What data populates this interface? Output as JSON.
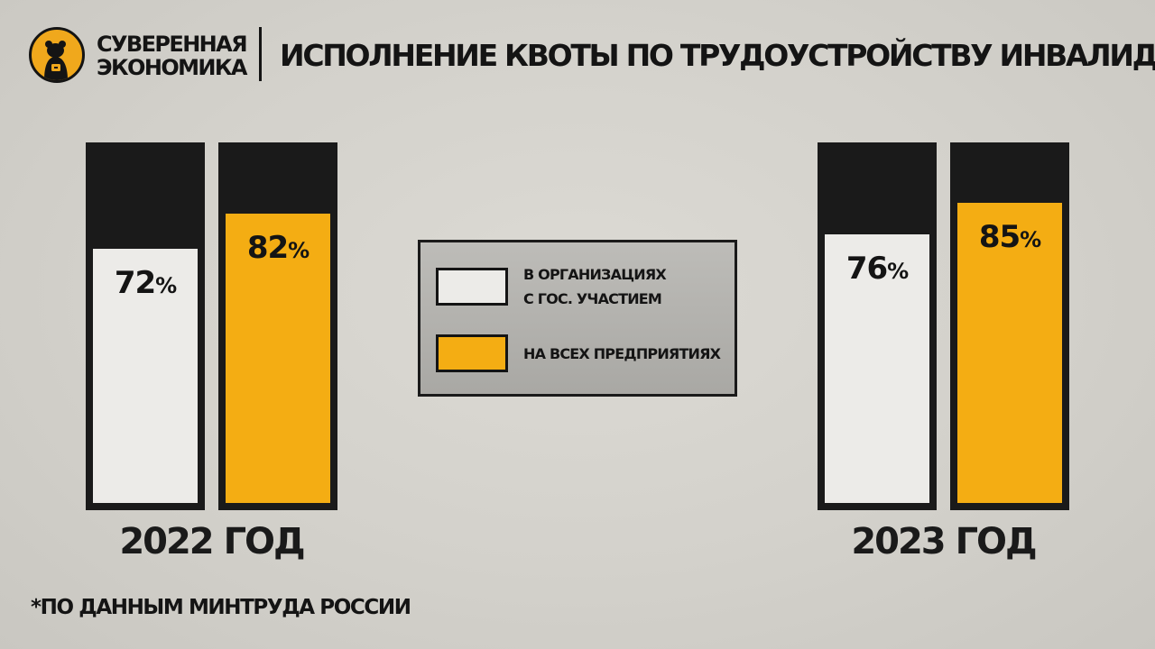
{
  "brand": {
    "line1": "СУВЕРЕННАЯ",
    "line2": "ЭКОНОМИКА"
  },
  "colors": {
    "government": "#ecebe8",
    "all": "#f4ad13",
    "frame": "#1a1a1a",
    "logo": "#f0a81c"
  },
  "chart_data": {
    "type": "bar",
    "title": "ИСПОЛНЕНИЕ КВОТЫ ПО ТРУДОУСТРОЙСТВУ ИНВАЛИДОВ",
    "categories": [
      "2022 ГОД",
      "2023 ГОД"
    ],
    "series": [
      {
        "name": "В ОРГАНИЗАЦИЯХ С ГОС. УЧАСТИЕМ",
        "values": [
          72,
          76
        ],
        "color": "#ecebe8",
        "legend_lines": [
          "В ОРГАНИЗАЦИЯХ",
          "С ГОС. УЧАСТИЕМ"
        ]
      },
      {
        "name": "НА ВСЕХ ПРЕДПРИЯТИЯХ",
        "values": [
          82,
          85
        ],
        "color": "#f4ad13",
        "legend_lines": [
          "НА ВСЕХ ПРЕДПРИЯТИЯХ"
        ]
      }
    ],
    "value_suffix": "%",
    "ylim": [
      0,
      100
    ],
    "legend_position": "center"
  },
  "footnote": "*ПО ДАННЫМ МИНТРУДА РОССИИ"
}
